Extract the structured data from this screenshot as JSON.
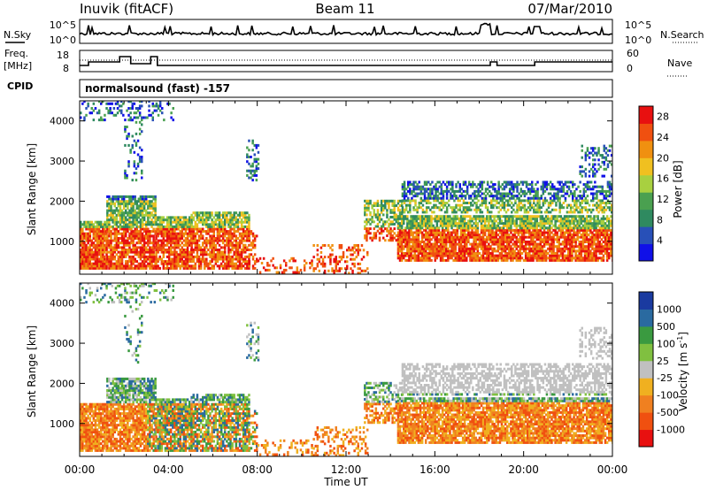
{
  "header": {
    "station": "Inuvik (fitACF)",
    "beam": "Beam 11",
    "date": "07/Mar/2010"
  },
  "sky_panel": {
    "left_label": "N.Sky",
    "right_label": "N.Search",
    "left_ticks": [
      "10^5",
      "10^0"
    ],
    "right_ticks": [
      "10^5",
      "10^0"
    ]
  },
  "freq_panel": {
    "left_label_1": "Freq.",
    "left_label_2": "[MHz]",
    "right_label": "Nave",
    "left_ticks": [
      "18",
      "8"
    ],
    "right_ticks": [
      "60",
      "0"
    ]
  },
  "cpid_panel": {
    "label": "CPID",
    "text": "normalsound (fast) -157"
  },
  "colors": {
    "power": [
      "#1010e8",
      "#2850b8",
      "#2f8a60",
      "#4aa050",
      "#a8d040",
      "#f0c020",
      "#f09010",
      "#f05010",
      "#e81010"
    ],
    "velocity": [
      "#e81010",
      "#f05010",
      "#f08020",
      "#f0b020",
      "#c0c0c0",
      "#80c040",
      "#3a9a40",
      "#2a6aa0",
      "#1a3aa0"
    ]
  },
  "chart_data": [
    {
      "type": "heatmap",
      "name": "power",
      "ylabel": "Slant Range [km]",
      "yticks": [
        "1000",
        "2000",
        "3000",
        "4000"
      ],
      "xticks": [
        "00:00",
        "04:00",
        "08:00",
        "12:00",
        "16:00",
        "20:00",
        "00:00"
      ],
      "ylim": [
        180,
        4500
      ],
      "xlim_hours": [
        0,
        24
      ],
      "colorbar": {
        "label": "Power [dB]",
        "tick_labels": [
          "4",
          "8",
          "12",
          "16",
          "20",
          "24",
          "28"
        ],
        "range": [
          0,
          30
        ]
      }
    },
    {
      "type": "heatmap",
      "name": "velocity",
      "ylabel": "Slant Range [km]",
      "yticks": [
        "1000",
        "2000",
        "3000",
        "4000"
      ],
      "xticks": [
        "00:00",
        "04:00",
        "08:00",
        "12:00",
        "16:00",
        "20:00",
        "00:00"
      ],
      "xlabel": "Time UT",
      "ylim": [
        180,
        4500
      ],
      "xlim_hours": [
        0,
        24
      ],
      "colorbar": {
        "label": "Velocity [m s",
        "label_sup": "-1",
        "label_end": "]",
        "tick_labels": [
          "1000",
          "500",
          "100",
          "25",
          "-25",
          "-100",
          "-500",
          "-1000"
        ]
      }
    }
  ]
}
